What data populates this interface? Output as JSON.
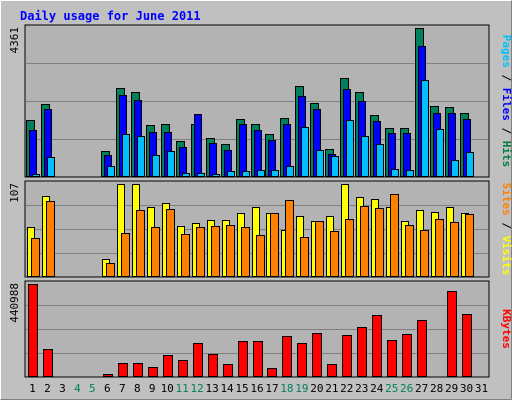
{
  "chart_data": {
    "type": "bar",
    "title": "Daily usage for June 2011",
    "days": [
      "1",
      "2",
      "3",
      "4",
      "5",
      "6",
      "7",
      "8",
      "9",
      "10",
      "11",
      "12",
      "13",
      "14",
      "15",
      "16",
      "17",
      "18",
      "19",
      "20",
      "21",
      "22",
      "23",
      "24",
      "25",
      "26",
      "27",
      "28",
      "29",
      "30",
      "31"
    ],
    "weekend_days": [
      "4",
      "5",
      "11",
      "12",
      "18",
      "19",
      "25",
      "26"
    ],
    "panels": [
      {
        "id": "hits",
        "max_label": "4361",
        "ymax": 4361,
        "right_labels": [
          {
            "text": "Pages",
            "color": "#00c0ff"
          },
          {
            "text": " / ",
            "color": "#000000"
          },
          {
            "text": "Files",
            "color": "#0000ff"
          },
          {
            "text": " / ",
            "color": "#000000"
          },
          {
            "text": "Hits",
            "color": "#008040"
          }
        ],
        "series": [
          {
            "name": "Hits",
            "color": "#00805c",
            "values": [
              1681,
              2143,
              0,
              0,
              0,
              762,
              2593,
              2476,
              1533,
              1545,
              1053,
              1565,
              1151,
              974,
              1694,
              1548,
              1272,
              1725,
              2650,
              2170,
              823,
              2894,
              2501,
              1806,
              1448,
              1438,
              4361,
              2065,
              2055,
              1883,
              0
            ]
          },
          {
            "name": "Files",
            "color": "#0000ff",
            "values": [
              1388,
              1988,
              0,
              0,
              0,
              644,
              2395,
              2243,
              1319,
              1327,
              877,
              1842,
              983,
              804,
              1557,
              1386,
              1096,
              1557,
              2364,
              1976,
              676,
              2570,
              2236,
              1641,
              1284,
              1287,
              3820,
              1874,
              1875,
              1712,
              0
            ]
          },
          {
            "name": "Pages",
            "color": "#00c0ff",
            "values": [
              88,
              578,
              0,
              0,
              0,
              323,
              1249,
              1210,
              632,
              774,
              130,
              130,
              81,
              188,
              163,
              206,
              218,
              321,
              1476,
              789,
              629,
              1677,
              1191,
              971,
              245,
              200,
              2847,
              1402,
              496,
              741,
              0
            ]
          }
        ]
      },
      {
        "id": "visits",
        "max_label": "107",
        "ymax": 107,
        "right_labels": [
          {
            "text": "Sites",
            "color": "#ff8000"
          },
          {
            "text": " / ",
            "color": "#000000"
          },
          {
            "text": "Visits",
            "color": "#ffff00"
          }
        ],
        "series": [
          {
            "name": "Visits",
            "color": "#ffff00",
            "values": [
              57,
              93,
              0,
              0,
              0,
              21,
              107,
              107,
              81,
              85,
              59,
              62,
              66,
              66,
              74,
              81,
              74,
              54,
              70,
              65,
              70,
              107,
              92,
              90,
              80,
              65,
              77,
              75,
              80,
              74,
              0
            ]
          },
          {
            "name": "Sites",
            "color": "#ff8000",
            "values": [
              45,
              88,
              0,
              0,
              0,
              16,
              51,
              77,
              58,
              78,
              50,
              58,
              59,
              60,
              57,
              48,
              74,
              89,
              46,
              64,
              53,
              67,
              82,
              79,
              96,
              60,
              54,
              67,
              63,
              73,
              0
            ]
          }
        ]
      },
      {
        "id": "kbytes",
        "max_label": "440988",
        "ymax": 440988,
        "right_labels": [
          {
            "text": "KBytes",
            "color": "#ff0000"
          }
        ],
        "series": [
          {
            "name": "KBytes",
            "color": "#ff0000",
            "values": [
              440988,
              131646,
              0,
              0,
              0,
              12676,
              65012,
              67282,
              49600,
              103000,
              81000,
              163000,
              110000,
              63000,
              172000,
              173000,
              44000,
              194000,
              159000,
              207000,
              60000,
              198000,
              238000,
              293000,
              175000,
              205000,
              271000,
              5000,
              408000,
              299000,
              0
            ]
          }
        ]
      }
    ]
  }
}
